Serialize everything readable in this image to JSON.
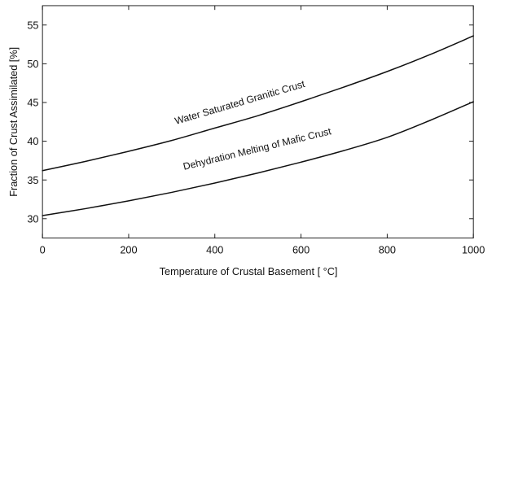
{
  "chart_data": {
    "type": "line",
    "title": "",
    "xlabel": "Temperature of Crustal Basement [ °C]",
    "ylabel": "Fraction of Crust Assimilated [%]",
    "xlim": [
      0,
      1000
    ],
    "ylim": [
      27.5,
      57.5
    ],
    "xticks": [
      0,
      200,
      400,
      600,
      800,
      1000
    ],
    "yticks": [
      30,
      35,
      40,
      45,
      50,
      55
    ],
    "grid": false,
    "legend": "none",
    "x": [
      0,
      100,
      200,
      300,
      400,
      500,
      600,
      700,
      800,
      900,
      1000
    ],
    "series": [
      {
        "name": "Water Saturated Granitic Crust",
        "values": [
          36.2,
          37.4,
          38.7,
          40.1,
          41.7,
          43.3,
          45.1,
          47.0,
          49.0,
          51.2,
          53.6
        ],
        "label_at": [
          460,
          44.6
        ]
      },
      {
        "name": "Dehydration Melting of Mafic Crust",
        "values": [
          30.4,
          31.3,
          32.3,
          33.4,
          34.6,
          35.9,
          37.3,
          38.8,
          40.5,
          42.7,
          45.1
        ],
        "label_at": [
          500,
          38.6
        ]
      }
    ],
    "colors": {
      "line": "#111111",
      "axis": "#111111",
      "background": "#ffffff"
    }
  }
}
